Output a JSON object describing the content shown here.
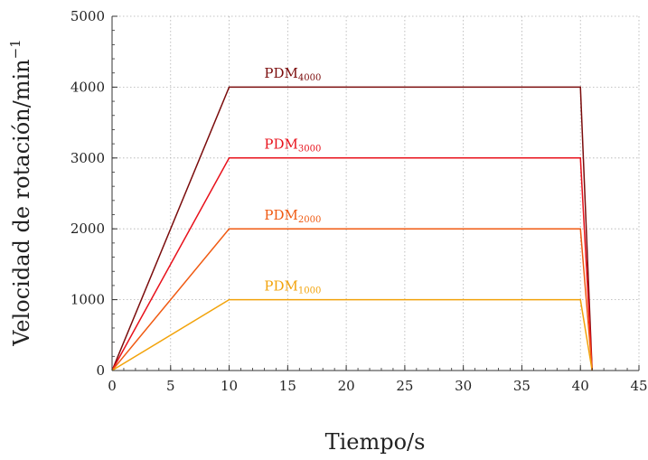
{
  "chart_data": {
    "type": "line",
    "title": "",
    "xlabel": "Tiempo/s",
    "ylabel": "Velocidad de rotación/min",
    "ylabel_exponent": "−1",
    "xlim": [
      0,
      45
    ],
    "ylim": [
      0,
      5000
    ],
    "xticks": [
      0,
      5,
      10,
      15,
      20,
      25,
      30,
      35,
      40,
      45
    ],
    "yticks": [
      0,
      1000,
      2000,
      3000,
      4000,
      5000
    ],
    "xminor_step": 1,
    "yminor_step": 200,
    "grid": true,
    "legend": "none",
    "series": [
      {
        "label_main": "PDM",
        "label_sub": "4000",
        "color": "#7b0c0c",
        "x": [
          0,
          10,
          40,
          41
        ],
        "y": [
          0,
          4000,
          4000,
          0
        ],
        "label_at": [
          13,
          4130
        ]
      },
      {
        "label_main": "PDM",
        "label_sub": "3000",
        "color": "#e8111b",
        "x": [
          0,
          10,
          40,
          41
        ],
        "y": [
          0,
          3000,
          3000,
          0
        ],
        "label_at": [
          13,
          3130
        ]
      },
      {
        "label_main": "PDM",
        "label_sub": "2000",
        "color": "#f05a12",
        "x": [
          0,
          10,
          40,
          41
        ],
        "y": [
          0,
          2000,
          2000,
          0
        ],
        "label_at": [
          13,
          2130
        ]
      },
      {
        "label_main": "PDM",
        "label_sub": "1000",
        "color": "#f2a30b",
        "x": [
          0,
          10,
          40,
          41
        ],
        "y": [
          0,
          1000,
          1000,
          0
        ],
        "label_at": [
          13,
          1130
        ]
      }
    ]
  }
}
